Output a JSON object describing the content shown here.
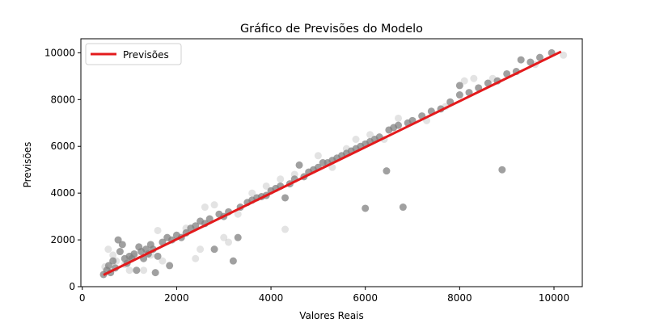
{
  "chart_data": {
    "type": "scatter",
    "title": "Gráfico de Previsões do Modelo",
    "xlabel": "Valores Reais",
    "ylabel": "Previsões",
    "xlim": [
      -30,
      10600
    ],
    "ylim": [
      0,
      10600
    ],
    "xticks": [
      0,
      2000,
      4000,
      6000,
      8000,
      10000
    ],
    "yticks": [
      0,
      2000,
      4000,
      6000,
      8000,
      10000
    ],
    "grid": false,
    "legend": {
      "position": "top-left",
      "entries": [
        "Previsões"
      ]
    },
    "colors": {
      "line": "#e31a1c",
      "points": "#808080"
    },
    "series": [
      {
        "type": "scatter",
        "points": [
          [
            450,
            520
          ],
          [
            520,
            700
          ],
          [
            560,
            900
          ],
          [
            600,
            600
          ],
          [
            650,
            1100
          ],
          [
            700,
            800
          ],
          [
            760,
            2000
          ],
          [
            800,
            1500
          ],
          [
            850,
            1800
          ],
          [
            900,
            1200
          ],
          [
            950,
            1000
          ],
          [
            1000,
            1300
          ],
          [
            1050,
            1200
          ],
          [
            1100,
            1400
          ],
          [
            1150,
            700
          ],
          [
            1200,
            1700
          ],
          [
            1250,
            1500
          ],
          [
            1300,
            1200
          ],
          [
            1350,
            1600
          ],
          [
            1400,
            1400
          ],
          [
            1450,
            1800
          ],
          [
            1500,
            1600
          ],
          [
            1550,
            600
          ],
          [
            1600,
            1300
          ],
          [
            1700,
            1900
          ],
          [
            1800,
            2100
          ],
          [
            1850,
            900
          ],
          [
            1900,
            2000
          ],
          [
            2000,
            2200
          ],
          [
            2100,
            2100
          ],
          [
            2200,
            2300
          ],
          [
            2300,
            2500
          ],
          [
            2400,
            2600
          ],
          [
            2500,
            2800
          ],
          [
            2600,
            2700
          ],
          [
            2700,
            2900
          ],
          [
            2800,
            1600
          ],
          [
            2900,
            3100
          ],
          [
            3000,
            3000
          ],
          [
            3100,
            3200
          ],
          [
            3200,
            1100
          ],
          [
            3300,
            2100
          ],
          [
            3350,
            3400
          ],
          [
            3500,
            3600
          ],
          [
            3600,
            3700
          ],
          [
            3700,
            3800
          ],
          [
            3800,
            3850
          ],
          [
            3900,
            3900
          ],
          [
            4000,
            4100
          ],
          [
            4100,
            4200
          ],
          [
            4200,
            4300
          ],
          [
            4300,
            3800
          ],
          [
            4400,
            4400
          ],
          [
            4500,
            4600
          ],
          [
            4600,
            5200
          ],
          [
            4700,
            4700
          ],
          [
            4800,
            4900
          ],
          [
            4900,
            5000
          ],
          [
            5000,
            5100
          ],
          [
            5100,
            5300
          ],
          [
            5200,
            5300
          ],
          [
            5300,
            5400
          ],
          [
            5400,
            5500
          ],
          [
            5500,
            5600
          ],
          [
            5600,
            5700
          ],
          [
            5700,
            5800
          ],
          [
            5800,
            5900
          ],
          [
            5900,
            6000
          ],
          [
            6000,
            6100
          ],
          [
            6000,
            3350
          ],
          [
            6100,
            6200
          ],
          [
            6200,
            6300
          ],
          [
            6300,
            6400
          ],
          [
            6450,
            4950
          ],
          [
            6500,
            6700
          ],
          [
            6600,
            6800
          ],
          [
            6700,
            6900
          ],
          [
            6800,
            3400
          ],
          [
            6900,
            7000
          ],
          [
            7000,
            7100
          ],
          [
            7200,
            7300
          ],
          [
            7400,
            7500
          ],
          [
            7600,
            7600
          ],
          [
            7800,
            7900
          ],
          [
            8000,
            8200
          ],
          [
            8000,
            8600
          ],
          [
            8200,
            8300
          ],
          [
            8400,
            8500
          ],
          [
            8600,
            8700
          ],
          [
            8800,
            8800
          ],
          [
            8900,
            5000
          ],
          [
            9000,
            9100
          ],
          [
            9200,
            9200
          ],
          [
            9300,
            9700
          ],
          [
            9500,
            9600
          ],
          [
            9700,
            9800
          ],
          [
            9950,
            10000
          ]
        ],
        "faded_points": [
          [
            480,
            850
          ],
          [
            550,
            1600
          ],
          [
            650,
            1350
          ],
          [
            720,
            1100
          ],
          [
            900,
            950
          ],
          [
            1000,
            700
          ],
          [
            1100,
            1300
          ],
          [
            1300,
            700
          ],
          [
            1450,
            1350
          ],
          [
            1600,
            2400
          ],
          [
            1700,
            1100
          ],
          [
            2200,
            2500
          ],
          [
            2400,
            1200
          ],
          [
            2500,
            1600
          ],
          [
            2600,
            3400
          ],
          [
            2800,
            3500
          ],
          [
            3000,
            2100
          ],
          [
            3100,
            1900
          ],
          [
            3300,
            3100
          ],
          [
            3600,
            4000
          ],
          [
            3900,
            4300
          ],
          [
            4200,
            4600
          ],
          [
            4300,
            2450
          ],
          [
            4500,
            4800
          ],
          [
            5000,
            5600
          ],
          [
            5300,
            5100
          ],
          [
            5600,
            5900
          ],
          [
            5800,
            6300
          ],
          [
            6100,
            6500
          ],
          [
            6400,
            6300
          ],
          [
            6700,
            7200
          ],
          [
            7300,
            7100
          ],
          [
            7700,
            7700
          ],
          [
            8100,
            8800
          ],
          [
            8300,
            8900
          ],
          [
            8700,
            8900
          ],
          [
            9600,
            9500
          ],
          [
            10200,
            9900
          ]
        ]
      },
      {
        "type": "line",
        "name": "Previsões",
        "x": [
          450,
          10150
        ],
        "y": [
          500,
          10050
        ]
      }
    ]
  }
}
